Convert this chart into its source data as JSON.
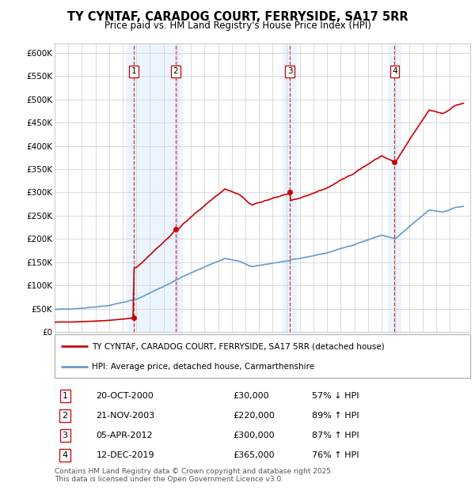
{
  "title": "TY CYNTAF, CARADOG COURT, FERRYSIDE, SA17 5RR",
  "subtitle": "Price paid vs. HM Land Registry's House Price Index (HPI)",
  "ylabel_ticks": [
    "£0",
    "£50K",
    "£100K",
    "£150K",
    "£200K",
    "£250K",
    "£300K",
    "£350K",
    "£400K",
    "£450K",
    "£500K",
    "£550K",
    "£600K"
  ],
  "ytick_vals": [
    0,
    50000,
    100000,
    150000,
    200000,
    250000,
    300000,
    350000,
    400000,
    450000,
    500000,
    550000,
    600000
  ],
  "ylim": [
    0,
    620000
  ],
  "xlim_start": 1995.0,
  "xlim_end": 2025.5,
  "sale_dates": [
    2000.79,
    2003.89,
    2012.26,
    2019.95
  ],
  "sale_prices": [
    30000,
    220000,
    300000,
    365000
  ],
  "sale_labels": [
    "1",
    "2",
    "3",
    "4"
  ],
  "legend_line1": "TY CYNTAF, CARADOG COURT, FERRYSIDE, SA17 5RR (detached house)",
  "legend_line2": "HPI: Average price, detached house, Carmarthenshire",
  "table_data": [
    [
      "1",
      "20-OCT-2000",
      "£30,000",
      "57% ↓ HPI"
    ],
    [
      "2",
      "21-NOV-2003",
      "£220,000",
      "89% ↑ HPI"
    ],
    [
      "3",
      "05-APR-2012",
      "£300,000",
      "87% ↑ HPI"
    ],
    [
      "4",
      "12-DEC-2019",
      "£365,000",
      "76% ↑ HPI"
    ]
  ],
  "footnote": "Contains HM Land Registry data © Crown copyright and database right 2025.\nThis data is licensed under the Open Government Licence v3.0.",
  "line_color_red": "#cc0000",
  "line_color_blue": "#6699cc",
  "background_color": "#ffffff",
  "grid_color": "#cccccc",
  "shading_color": "#ddeeff",
  "shade_alpha": 0.6
}
